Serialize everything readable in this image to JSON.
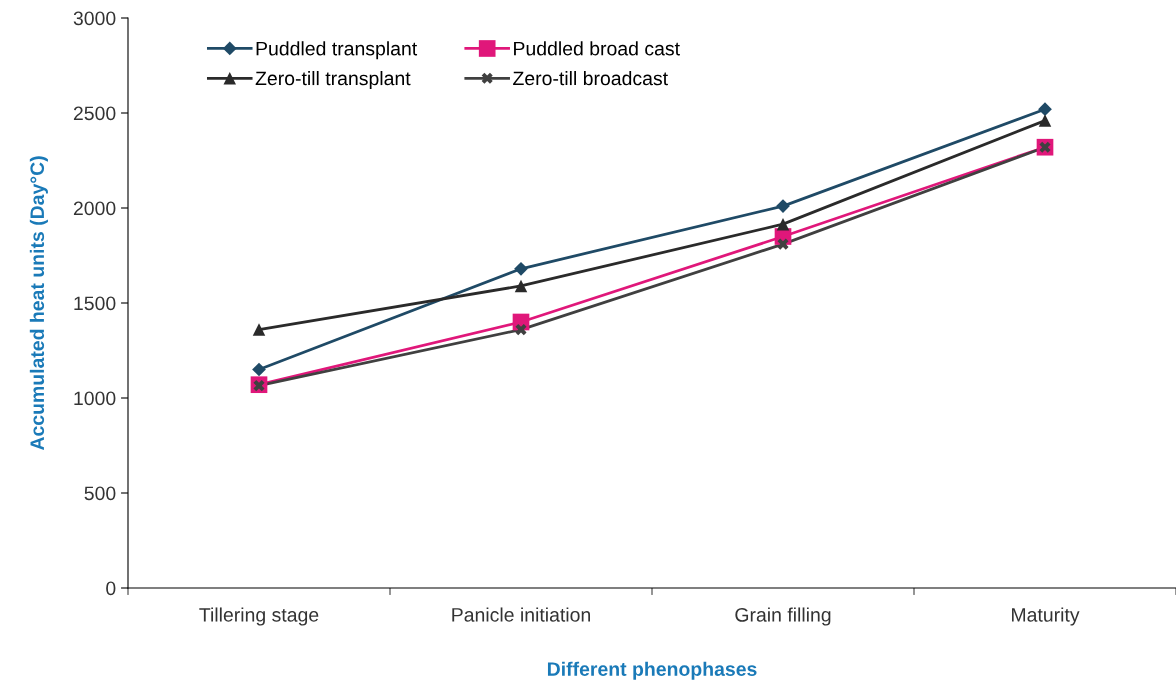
{
  "chart_data": {
    "type": "line",
    "xlabel": "Different phenophases",
    "ylabel": "Accumulated heat units (Day°C)",
    "categories": [
      "Tillering stage",
      "Panicle initiation",
      "Grain filling",
      "Maturity"
    ],
    "series": [
      {
        "name": "Puddled transplant",
        "color": "#1f4a66",
        "marker": "diamond",
        "values": [
          1150,
          1680,
          2010,
          2520
        ]
      },
      {
        "name": "Puddled broad cast",
        "color": "#e0177a",
        "marker": "square",
        "values": [
          1070,
          1400,
          1850,
          2320
        ]
      },
      {
        "name": "Zero-till transplant",
        "color": "#2a2a2a",
        "marker": "triangle",
        "values": [
          1360,
          1590,
          1915,
          2460
        ]
      },
      {
        "name": "Zero-till broadcast",
        "color": "#404040",
        "marker": "cross",
        "values": [
          1065,
          1360,
          1810,
          2320
        ]
      }
    ],
    "ylim": [
      0,
      3000
    ],
    "yticks": [
      0,
      500,
      1000,
      1500,
      2000,
      2500,
      3000
    ],
    "grid": false,
    "legend": "top left",
    "line_style": "solid"
  }
}
